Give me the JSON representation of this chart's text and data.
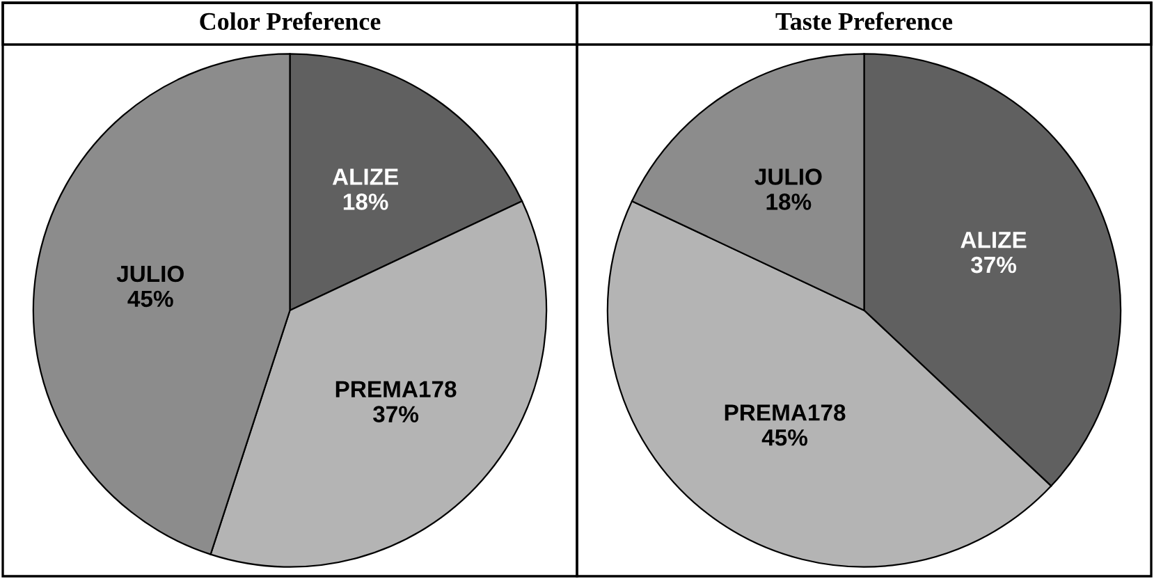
{
  "chart_data": [
    {
      "type": "pie",
      "title": "Color Preference",
      "categories": [
        "ALIZE",
        "PREMA178",
        "JULIO"
      ],
      "values": [
        18,
        37,
        45
      ],
      "value_labels": [
        "18%",
        "37%",
        "45%"
      ],
      "colors": [
        "#606060",
        "#b4b4b4",
        "#8c8c8c"
      ],
      "legend": false
    },
    {
      "type": "pie",
      "title": "Taste Preference",
      "categories": [
        "ALIZE",
        "PREMA178",
        "JULIO"
      ],
      "values": [
        37,
        45,
        18
      ],
      "value_labels": [
        "37%",
        "45%",
        "18%"
      ],
      "colors": [
        "#606060",
        "#b4b4b4",
        "#8c8c8c"
      ],
      "legend": false
    }
  ]
}
